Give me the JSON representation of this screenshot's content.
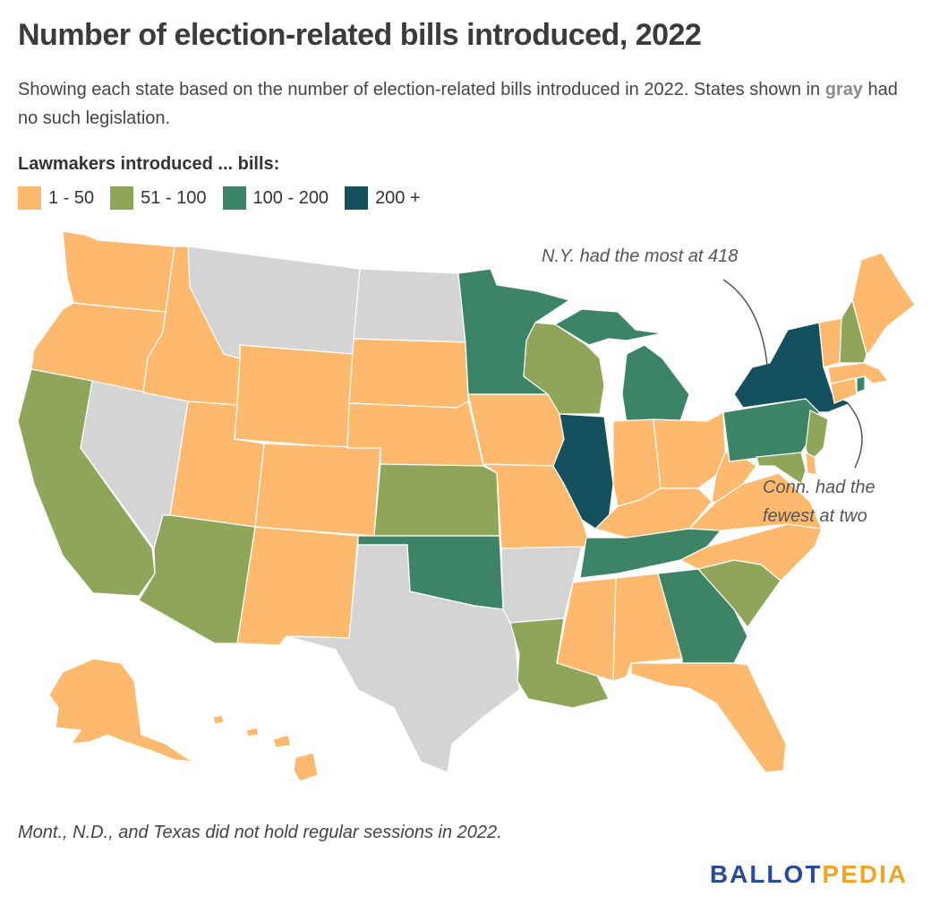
{
  "title": "Number of election-related bills introduced, 2022",
  "subtitle_before": "Showing each state based on the number of election-related bills introduced in 2022. States shown in ",
  "subtitle_highlight": "gray",
  "subtitle_after": " had no such legislation.",
  "legend": {
    "title": "Lawmakers introduced ... bills:",
    "items": [
      {
        "label": "1 - 50",
        "color": "#fdb96e"
      },
      {
        "label": "51 - 100",
        "color": "#8fa55a"
      },
      {
        "label": "100 - 200",
        "color": "#3d8366"
      },
      {
        "label": "200 +",
        "color": "#14505e"
      }
    ]
  },
  "colors": {
    "none": "#d4d4d4",
    "tier1": "#fdb96e",
    "tier2": "#8fa55a",
    "tier3": "#3d8366",
    "tier4": "#14505e"
  },
  "annotations": {
    "ny": "N.Y. had the most at 418",
    "ct_line1": "Conn. had the",
    "ct_line2": "fewest at two"
  },
  "note": "Mont., N.D., and Texas did not hold regular sessions in 2022.",
  "logo": {
    "part1": "BALLOT",
    "part2": "PEDIA"
  },
  "state_tiers": {
    "WA": "tier1",
    "OR": "tier1",
    "CA": "tier2",
    "NV": "none",
    "ID": "tier1",
    "MT": "none",
    "WY": "tier1",
    "UT": "tier1",
    "AZ": "tier2",
    "CO": "tier1",
    "NM": "tier1",
    "ND": "none",
    "SD": "tier1",
    "NE": "tier1",
    "KS": "tier2",
    "OK": "tier3",
    "TX": "none",
    "MN": "tier3",
    "IA": "tier1",
    "MO": "tier1",
    "AR": "none",
    "LA": "tier2",
    "WI": "tier2",
    "IL": "tier4",
    "MI": "tier3",
    "IN": "tier1",
    "OH": "tier1",
    "KY": "tier1",
    "TN": "tier3",
    "MS": "tier1",
    "AL": "tier1",
    "GA": "tier3",
    "FL": "tier1",
    "SC": "tier2",
    "NC": "tier1",
    "VA": "tier1",
    "WV": "tier1",
    "PA": "tier3",
    "NY": "tier4",
    "NJ": "tier2",
    "DE": "tier1",
    "MD": "tier2",
    "CT": "tier1",
    "RI": "tier3",
    "MA": "tier1",
    "VT": "tier1",
    "NH": "tier2",
    "ME": "tier1",
    "AK": "tier1",
    "HI": "tier1"
  }
}
